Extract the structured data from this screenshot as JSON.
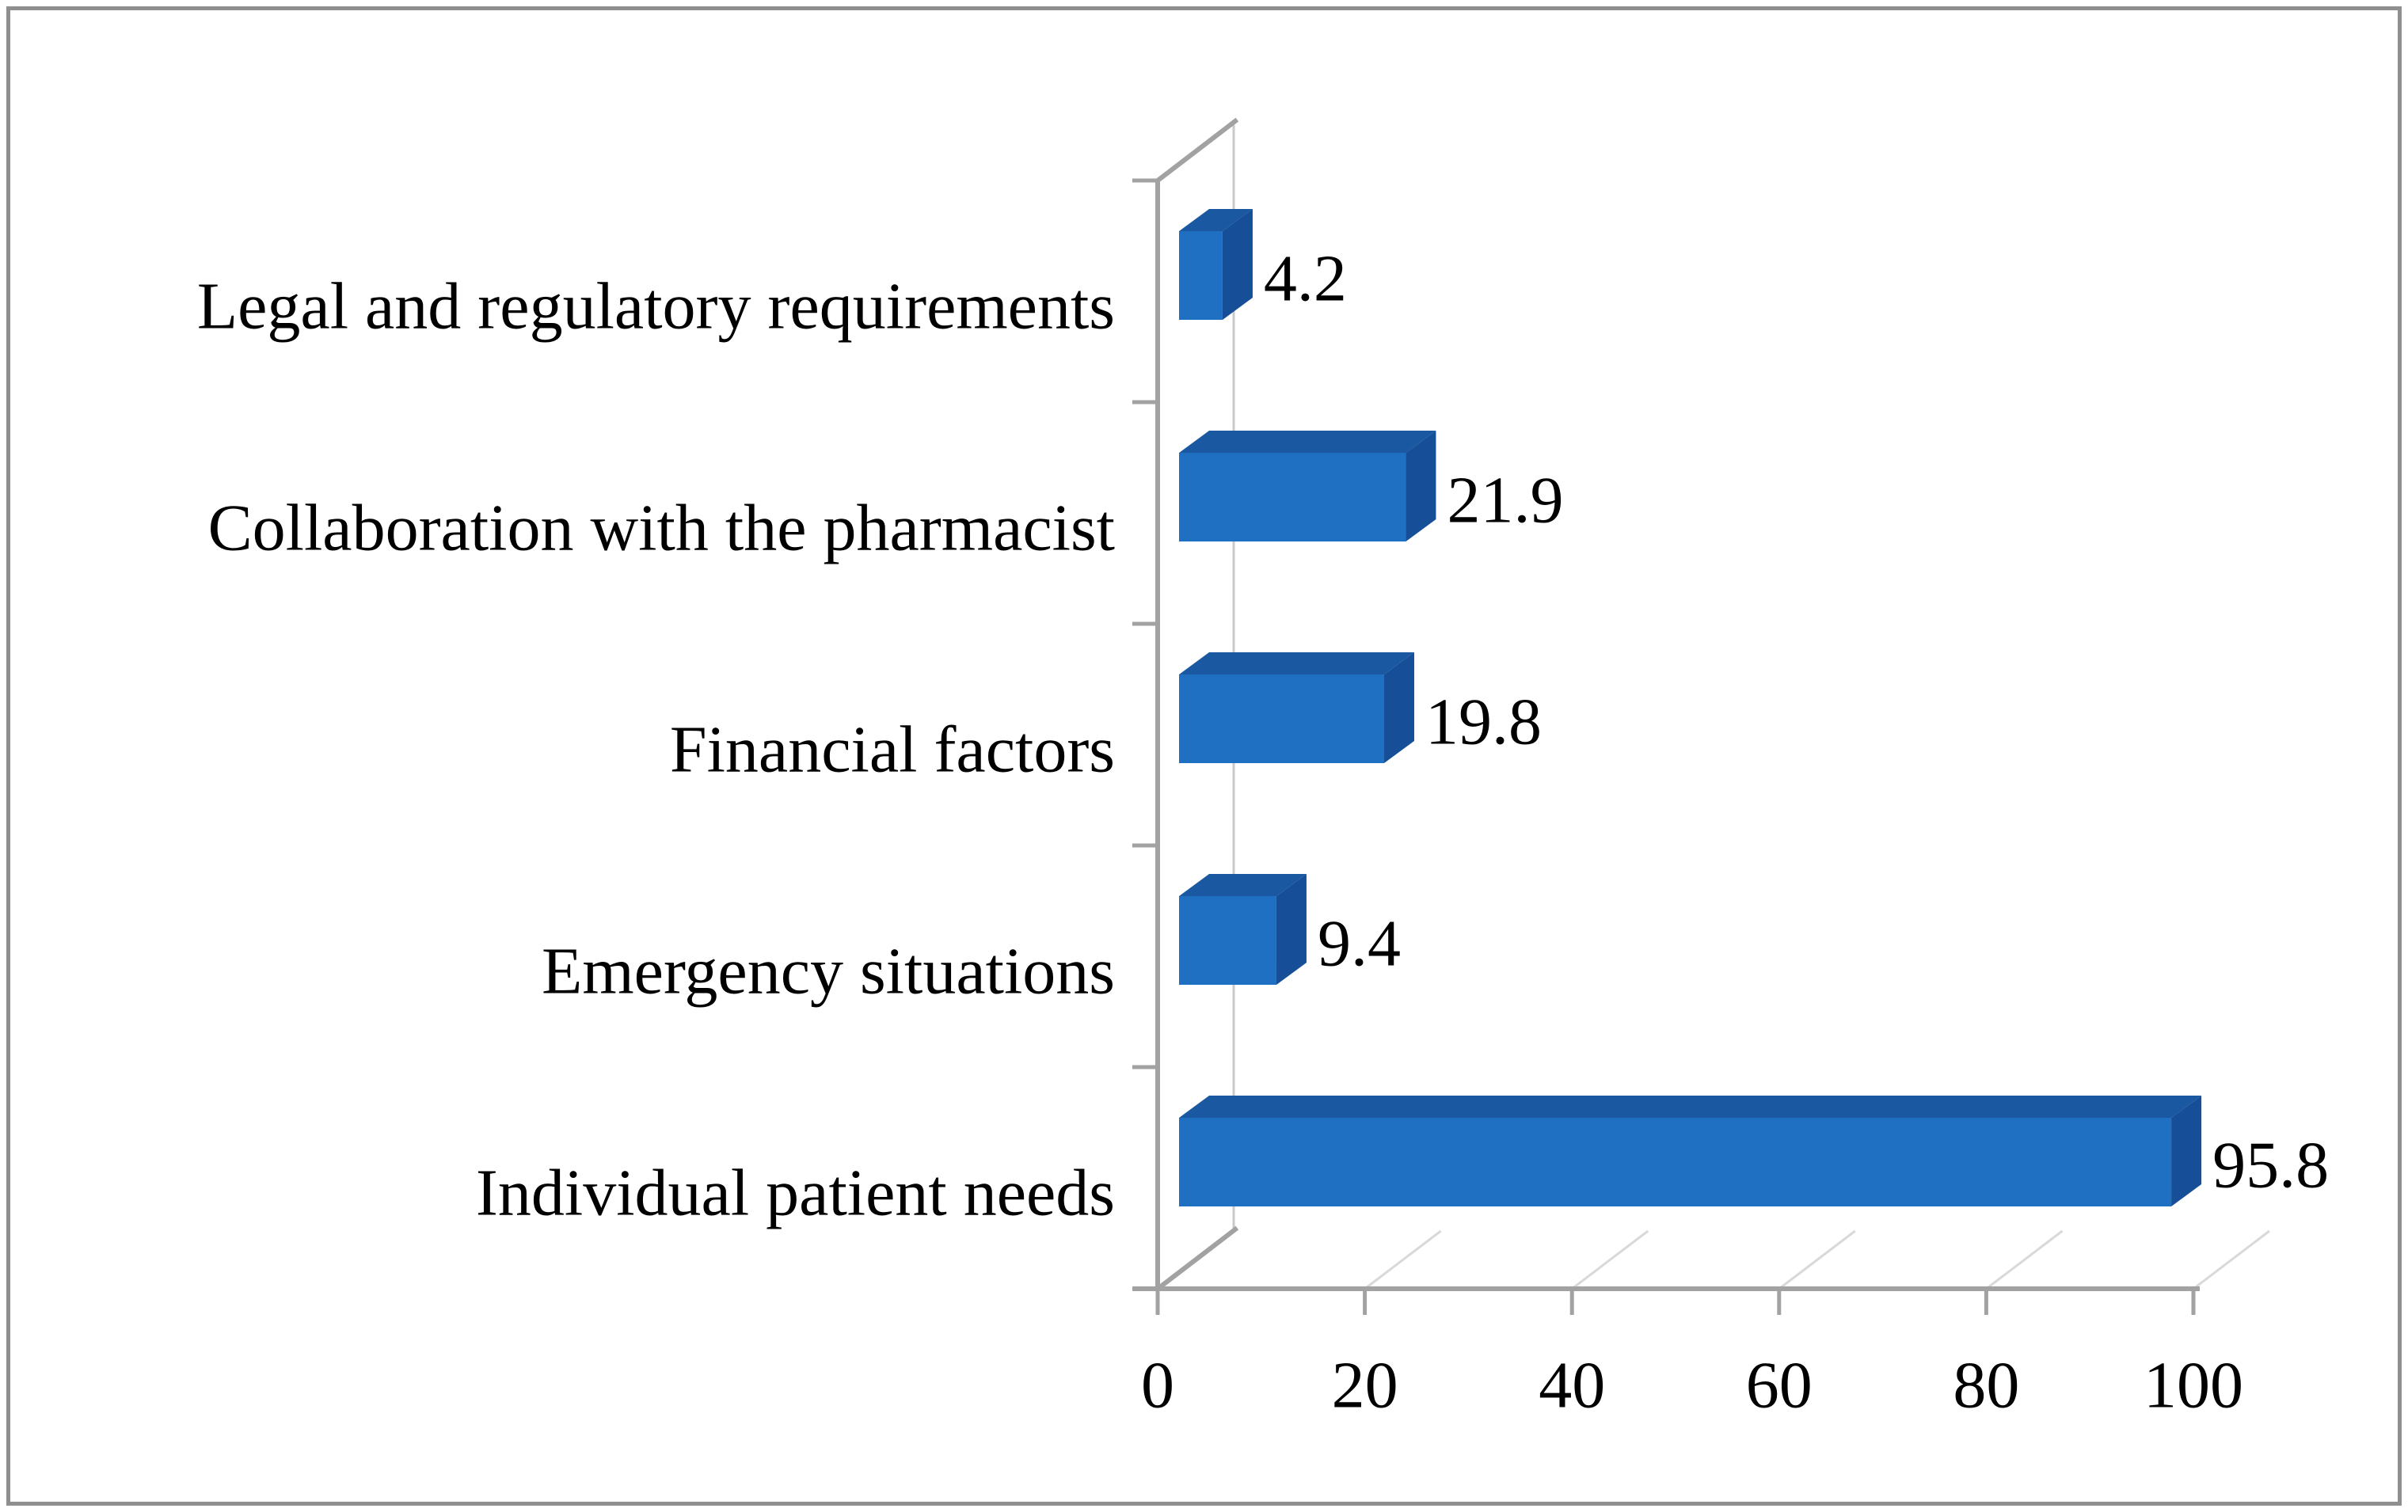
{
  "figure": {
    "background": "#FFFFFF",
    "border_color": "#8F8F8F"
  },
  "chart_data": {
    "type": "bar",
    "orientation": "horizontal",
    "projection": "3d-oblique",
    "categories_order": "top-to-bottom",
    "categories": [
      "Legal and regulatory requirements",
      "Collaboration with the pharmacist",
      "Financial factors",
      "Emergency situations",
      "Individual patient needs"
    ],
    "values": [
      4.2,
      21.9,
      19.8,
      9.4,
      95.8
    ],
    "value_labels": [
      "4.2",
      "21.9",
      "19.8",
      "9.4",
      "95.8"
    ],
    "xlim": [
      0,
      100
    ],
    "x_tick_values": [
      0,
      20,
      40,
      60,
      80,
      100
    ],
    "x_tick_labels": [
      "0",
      "20",
      "40",
      "60",
      "80",
      "100"
    ],
    "grid": false,
    "data_labels_shown": true,
    "colors": {
      "bar_front": "#1F6FC2",
      "bar_top": "#1A58A2",
      "bar_side": "#164F97",
      "axis": "#A2A2A2",
      "back_wall_line": "#C9C9C9",
      "floor_gridline": "#D9D9D9",
      "text": "#000000"
    }
  }
}
